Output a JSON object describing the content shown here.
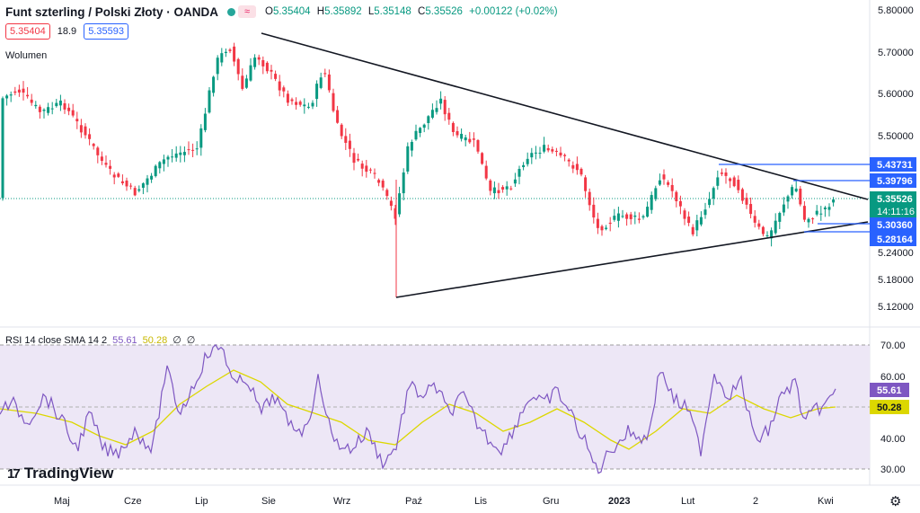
{
  "header": {
    "symbol_title": "Funt szterling / Polski Złoty · OANDA",
    "session_icon": "≈",
    "o_label": "O",
    "o_value": "5.35404",
    "h_label": "H",
    "h_value": "5.35892",
    "l_label": "L",
    "l_value": "5.35148",
    "c_label": "C",
    "c_value": "5.35526",
    "change": "+0.00122 (+0.02%)"
  },
  "trade": {
    "sell_price": "5.35404",
    "spread": "18.9",
    "buy_price": "5.35593"
  },
  "volume_label": "Wolumen",
  "rsi_legend": {
    "title": "RSI 14 close SMA 14 2",
    "rsi": "55.61",
    "sma": "50.28",
    "z1": "∅",
    "z2": "∅"
  },
  "price_axis": [
    "5.80000",
    "5.70000",
    "5.60000",
    "5.50000",
    "5.24000",
    "5.18000",
    "5.12000"
  ],
  "price_labels": {
    "l1": "5.43731",
    "l2": "5.39796",
    "current": "5.35526",
    "countdown": "14:11:16",
    "l3": "5.30360",
    "l4": "5.28164"
  },
  "rsi_axis": [
    "70.00",
    "60.00",
    "40.00",
    "30.00"
  ],
  "rsi_labels": {
    "rsi": "55.61",
    "sma": "50.28"
  },
  "time_axis": [
    "Maj",
    "Cze",
    "Lip",
    "Sie",
    "Wrz",
    "Paź",
    "Lis",
    "Gru",
    "2023",
    "Lut",
    "2",
    "Kwi"
  ],
  "logo_text": "TradingView",
  "colors": {
    "up": "#089981",
    "down": "#f23645",
    "rsi": "#7e57c2",
    "sma": "#dcd700",
    "band": "#ede7f6",
    "hline": "#2962ff",
    "trend": "#131722"
  },
  "chart_data": {
    "type": "candlestick",
    "symbol": "GBP/PLN",
    "y_range": [
      5.1,
      5.83
    ],
    "trendline_upper": [
      [
        5.745,
        5.35
      ]
    ],
    "trendline_lower": [
      [
        5.14,
        5.3
      ]
    ],
    "horizontal_levels": [
      5.43731,
      5.39796,
      5.3036,
      5.28164
    ],
    "rsi": {
      "range": [
        25,
        75
      ],
      "band": [
        30,
        70
      ],
      "last": 55.61,
      "sma_last": 50.28
    }
  }
}
